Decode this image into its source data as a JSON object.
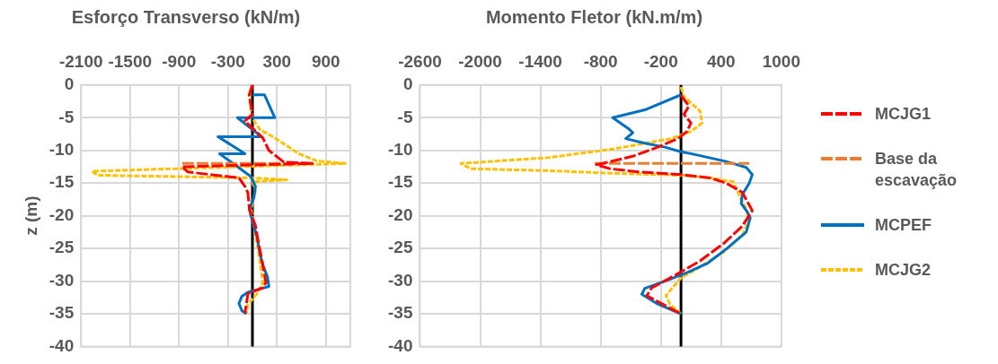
{
  "chart_data": [
    {
      "type": "line",
      "title": "Esforço Transverso (kN/m)",
      "ylabel": "z (m)",
      "xlim": [
        -2100,
        1200
      ],
      "xticks": [
        -2100,
        -1500,
        -900,
        -300,
        300,
        900
      ],
      "ylim": [
        -40,
        0
      ],
      "yticks": [
        -40,
        -35,
        -30,
        -25,
        -20,
        -15,
        -10,
        -5,
        0
      ],
      "grid": true,
      "legend": false,
      "ref_lines": [
        {
          "axis": "x",
          "value": 0,
          "color": "#000000"
        }
      ],
      "series": [
        {
          "color": "#ff0000",
          "line_style": "dashed",
          "x": [
            0,
            -40,
            -20,
            0,
            -92,
            128,
            202,
            386,
            735,
            -863,
            -790,
            -165,
            -92,
            -55,
            -37,
            37,
            73,
            129,
            165,
            129,
            -55,
            -92
          ],
          "values": [
            0,
            -1.5,
            -3,
            -4.5,
            -5.5,
            -8.1,
            -10,
            -11.8,
            -12,
            -12.5,
            -13.3,
            -14.2,
            -15.5,
            -16.5,
            -19,
            -21.5,
            -24,
            -27.6,
            -30.2,
            -31,
            -31.9,
            -34.9
          ]
        },
        {
          "color": "#ed7d31",
          "line_style": "dashed",
          "x": [
            -860,
            700
          ],
          "values": [
            -12,
            -12
          ]
        },
        {
          "color": "#0070c0",
          "line_style": "solid",
          "x": [
            0,
            147,
            275,
            -184,
            110,
            -422,
            -92,
            -404,
            -18,
            37,
            18,
            -37,
            -18,
            18,
            55,
            92,
            129,
            184,
            202,
            92,
            -55,
            -129,
            -165,
            -129,
            -73
          ],
          "values": [
            -1.5,
            -1.5,
            -5,
            -5,
            -7.9,
            -7.9,
            -10.5,
            -10.5,
            -14,
            -15.5,
            -17.2,
            -19,
            -20,
            -21.5,
            -23.2,
            -25.8,
            -27.6,
            -29.3,
            -30.8,
            -31.2,
            -31.7,
            -32.3,
            -33.4,
            -34.5,
            -35
          ]
        },
        {
          "color": "#ffc000",
          "line_style": "dotted",
          "x": [
            0,
            -37,
            -7,
            92,
            275,
            569,
            790,
            1139,
            -1965,
            -1900,
            0,
            422,
            0,
            37,
            -18,
            18,
            73,
            129,
            55,
            -55,
            -73
          ],
          "values": [
            0,
            -1.5,
            -5,
            -6.8,
            -8.1,
            -10.5,
            -11.6,
            -12,
            -13.2,
            -13.8,
            -14.2,
            -14.5,
            -14.8,
            -16.3,
            -19,
            -21.5,
            -25.4,
            -30.2,
            -31.9,
            -33.6,
            -34.9
          ]
        }
      ]
    },
    {
      "type": "line",
      "title": "Momento Fletor (kN.m/m)",
      "xlim": [
        -2600,
        1000
      ],
      "xticks": [
        -2600,
        -2000,
        -1400,
        -800,
        -200,
        400,
        1000
      ],
      "ylim": [
        -40,
        0
      ],
      "yticks": [
        -40,
        -35,
        -30,
        -25,
        -20,
        -15,
        -10,
        -5,
        0
      ],
      "grid": true,
      "legend": "right",
      "ref_lines": [
        {
          "axis": "x",
          "value": 0,
          "color": "#000000"
        }
      ],
      "series": [
        {
          "name": "MCJG1",
          "color": "#ff0000",
          "line_style": "dashed",
          "x": [
            0,
            80,
            30,
            100,
            60,
            -30,
            -230,
            -480,
            -840,
            -710,
            -420,
            0,
            290,
            450,
            610,
            710,
            610,
            420,
            190,
            -60,
            -290,
            -340,
            -160,
            0
          ],
          "values": [
            -1.6,
            -3.2,
            -4.5,
            -5.8,
            -7.1,
            -8.2,
            -9.5,
            -10.9,
            -12.2,
            -12.8,
            -13.3,
            -13.7,
            -14.2,
            -15,
            -16.4,
            -19.2,
            -21.6,
            -24.3,
            -26.9,
            -29.1,
            -31,
            -32.2,
            -33.7,
            -35
          ]
        },
        {
          "name": "Base da escavação",
          "color": "#ed7d31",
          "line_style": "dashed",
          "x": [
            -860,
            680
          ],
          "values": [
            -12,
            -12
          ]
        },
        {
          "name": "MCPEF",
          "color": "#0070c0",
          "line_style": "solid",
          "x": [
            0,
            -360,
            -680,
            -520,
            -480,
            -550,
            -360,
            -160,
            0,
            100,
            450,
            650,
            710,
            680,
            610,
            600,
            660,
            690,
            650,
            450,
            260,
            60,
            -160,
            -360,
            -390,
            -230,
            0
          ],
          "values": [
            -1.5,
            -3.8,
            -5,
            -6.7,
            -7.3,
            -8.2,
            -8.9,
            -9.5,
            -10.2,
            -10.5,
            -11.7,
            -12.6,
            -13.7,
            -15,
            -16.8,
            -18.1,
            -19.4,
            -20.3,
            -22.5,
            -25.1,
            -27.3,
            -28.7,
            -30,
            -31.1,
            -32,
            -33.5,
            -35
          ]
        },
        {
          "name": "MCJG2",
          "color": "#ffc000",
          "line_style": "dotted",
          "x": [
            0,
            30,
            190,
            210,
            100,
            -100,
            -680,
            -1320,
            -2190,
            -2100,
            -1320,
            -680,
            0,
            290,
            520,
            580,
            650,
            680,
            610,
            420,
            190,
            0,
            -100,
            -150,
            -110,
            0
          ],
          "values": [
            -0.3,
            -1.8,
            -4,
            -5.8,
            -7.1,
            -8.2,
            -9.8,
            -11.1,
            -12,
            -12.8,
            -13.1,
            -13.5,
            -13.8,
            -14.2,
            -14.8,
            -16.8,
            -19,
            -20.7,
            -22.9,
            -25.6,
            -27.8,
            -29.5,
            -31.3,
            -32.2,
            -33.5,
            -35
          ]
        }
      ]
    }
  ]
}
